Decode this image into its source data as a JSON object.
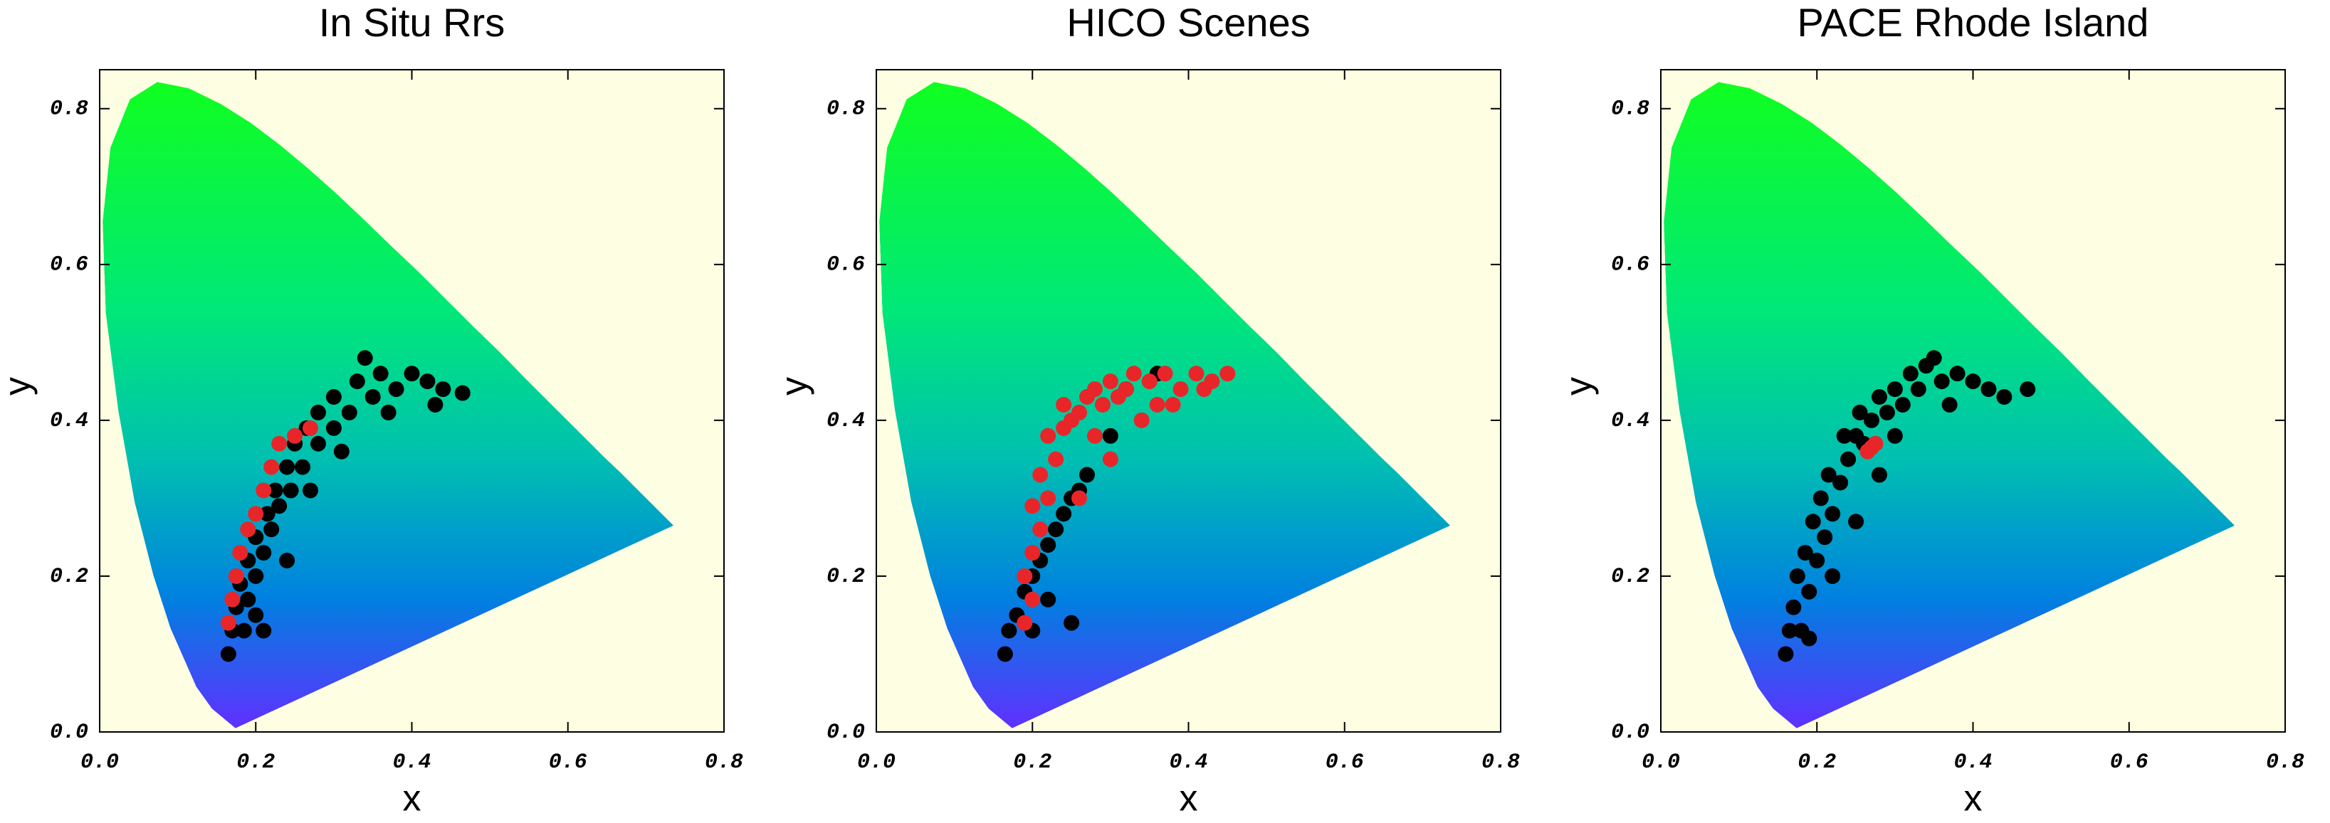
{
  "chart_data": [
    {
      "type": "scatter",
      "title": "In Situ Rrs",
      "xlabel": "x",
      "ylabel": "y",
      "xlim": [
        0,
        0.8
      ],
      "ylim": [
        0,
        0.85
      ],
      "xticks": [
        {
          "value": 0,
          "label": "0.0"
        },
        0.2,
        0.4,
        0.6,
        0.8
      ],
      "yticks": [
        {
          "value": 0,
          "label": "0.0"
        },
        0.2,
        0.4,
        0.6,
        0.8
      ],
      "plot_background": "#fefee2",
      "series": [
        {
          "color": "#000000",
          "x": [
            0.165,
            0.17,
            0.175,
            0.185,
            0.18,
            0.19,
            0.19,
            0.2,
            0.2,
            0.21,
            0.215,
            0.22,
            0.225,
            0.23,
            0.24,
            0.245,
            0.25,
            0.26,
            0.265,
            0.28,
            0.28,
            0.3,
            0.3,
            0.32,
            0.33,
            0.35,
            0.36,
            0.38,
            0.4,
            0.42,
            0.44,
            0.465,
            0.34,
            0.21,
            0.24,
            0.2,
            0.27,
            0.31,
            0.37,
            0.43
          ],
          "values": [
            0.1,
            0.13,
            0.16,
            0.13,
            0.19,
            0.17,
            0.22,
            0.2,
            0.25,
            0.23,
            0.28,
            0.26,
            0.31,
            0.29,
            0.34,
            0.31,
            0.37,
            0.34,
            0.39,
            0.37,
            0.41,
            0.39,
            0.43,
            0.41,
            0.45,
            0.43,
            0.46,
            0.44,
            0.46,
            0.45,
            0.44,
            0.435,
            0.48,
            0.13,
            0.22,
            0.15,
            0.31,
            0.36,
            0.41,
            0.42
          ]
        },
        {
          "color": "#e8262a",
          "x": [
            0.165,
            0.17,
            0.175,
            0.18,
            0.19,
            0.2,
            0.21,
            0.22,
            0.23,
            0.25,
            0.27
          ],
          "values": [
            0.14,
            0.17,
            0.2,
            0.23,
            0.26,
            0.28,
            0.31,
            0.34,
            0.37,
            0.38,
            0.39
          ]
        }
      ]
    },
    {
      "type": "scatter",
      "title": "HICO Scenes",
      "xlabel": "x",
      "ylabel": "y",
      "xlim": [
        0,
        0.8
      ],
      "ylim": [
        0,
        0.85
      ],
      "xticks": [
        {
          "value": 0,
          "label": "0.0"
        },
        0.2,
        0.4,
        0.6,
        0.8
      ],
      "yticks": [
        {
          "value": 0,
          "label": "0.0"
        },
        0.2,
        0.4,
        0.6,
        0.8
      ],
      "plot_background": "#fefee2",
      "series": [
        {
          "color": "#000000",
          "x": [
            0.165,
            0.17,
            0.18,
            0.19,
            0.2,
            0.21,
            0.22,
            0.23,
            0.24,
            0.25,
            0.26,
            0.27,
            0.3,
            0.32,
            0.36,
            0.25,
            0.22,
            0.2
          ],
          "values": [
            0.1,
            0.13,
            0.15,
            0.18,
            0.2,
            0.22,
            0.24,
            0.26,
            0.28,
            0.3,
            0.31,
            0.33,
            0.38,
            0.44,
            0.46,
            0.14,
            0.17,
            0.13
          ]
        },
        {
          "color": "#e8262a",
          "x": [
            0.19,
            0.2,
            0.19,
            0.2,
            0.21,
            0.2,
            0.22,
            0.21,
            0.23,
            0.22,
            0.24,
            0.25,
            0.24,
            0.26,
            0.27,
            0.28,
            0.29,
            0.3,
            0.31,
            0.32,
            0.33,
            0.35,
            0.37,
            0.39,
            0.41,
            0.43,
            0.45,
            0.34,
            0.36,
            0.3,
            0.28,
            0.38,
            0.42,
            0.26
          ],
          "values": [
            0.14,
            0.17,
            0.2,
            0.23,
            0.26,
            0.29,
            0.3,
            0.33,
            0.35,
            0.38,
            0.39,
            0.4,
            0.42,
            0.41,
            0.43,
            0.44,
            0.42,
            0.45,
            0.43,
            0.44,
            0.46,
            0.45,
            0.46,
            0.44,
            0.46,
            0.45,
            0.46,
            0.4,
            0.42,
            0.35,
            0.38,
            0.42,
            0.44,
            0.3
          ]
        }
      ]
    },
    {
      "type": "scatter",
      "title": "PACE Rhode Island",
      "xlabel": "x",
      "ylabel": "y",
      "xlim": [
        0,
        0.8
      ],
      "ylim": [
        0,
        0.85
      ],
      "xticks": [
        {
          "value": 0,
          "label": "0.0"
        },
        0.2,
        0.4,
        0.6,
        0.8
      ],
      "yticks": [
        {
          "value": 0,
          "label": "0.0"
        },
        0.2,
        0.4,
        0.6,
        0.8
      ],
      "plot_background": "#fefee2",
      "series": [
        {
          "color": "#000000",
          "x": [
            0.16,
            0.165,
            0.17,
            0.18,
            0.175,
            0.19,
            0.185,
            0.2,
            0.195,
            0.21,
            0.205,
            0.22,
            0.215,
            0.23,
            0.24,
            0.235,
            0.25,
            0.26,
            0.255,
            0.27,
            0.28,
            0.29,
            0.3,
            0.31,
            0.32,
            0.33,
            0.34,
            0.36,
            0.38,
            0.4,
            0.42,
            0.44,
            0.47,
            0.35,
            0.22,
            0.25,
            0.28,
            0.19,
            0.3,
            0.37
          ],
          "values": [
            0.1,
            0.13,
            0.16,
            0.13,
            0.2,
            0.18,
            0.23,
            0.22,
            0.27,
            0.25,
            0.3,
            0.28,
            0.33,
            0.32,
            0.35,
            0.38,
            0.38,
            0.37,
            0.41,
            0.4,
            0.43,
            0.41,
            0.44,
            0.42,
            0.46,
            0.44,
            0.47,
            0.45,
            0.46,
            0.45,
            0.44,
            0.43,
            0.44,
            0.48,
            0.2,
            0.27,
            0.33,
            0.12,
            0.38,
            0.42
          ]
        },
        {
          "color": "#e8262a",
          "x": [
            0.265,
            0.27,
            0.275
          ],
          "values": [
            0.36,
            0.365,
            0.37
          ]
        }
      ]
    }
  ]
}
